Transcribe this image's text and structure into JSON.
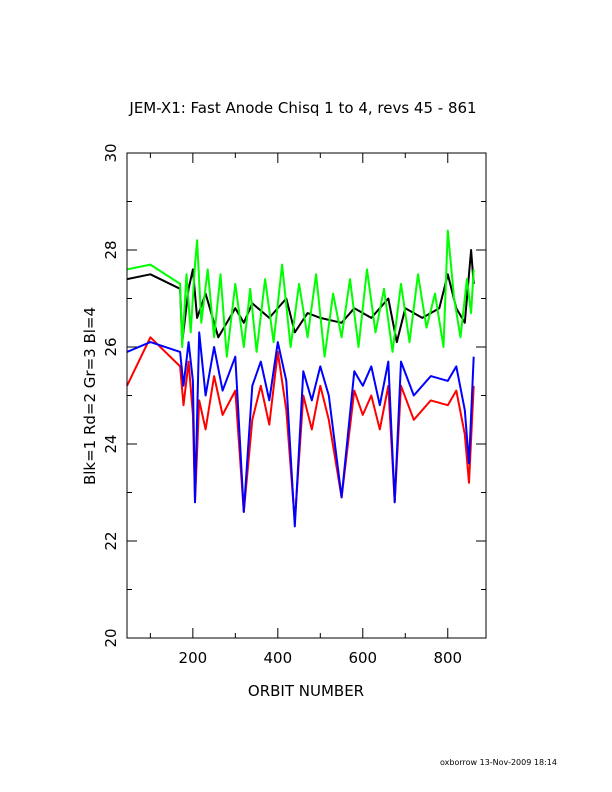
{
  "chart_data": {
    "type": "line",
    "title": "JEM-X1: Fast Anode Chisq 1 to 4, revs 45 - 861",
    "xlabel": "ORBIT NUMBER",
    "ylabel": "Blk=1 Rd=2 Gr=3 Bl=4",
    "xlim": [
      45,
      890
    ],
    "ylim": [
      20,
      30
    ],
    "x_ticks": [
      200,
      400,
      600,
      800
    ],
    "y_ticks": [
      20,
      22,
      24,
      26,
      28,
      30
    ],
    "grid": false,
    "legend": "none",
    "series": [
      {
        "color": "#000000",
        "x": [
          45,
          100,
          170,
          175,
          190,
          200,
          210,
          230,
          260,
          300,
          320,
          340,
          380,
          420,
          440,
          470,
          500,
          550,
          580,
          620,
          660,
          680,
          700,
          740,
          780,
          800,
          820,
          840,
          855,
          861
        ],
        "y": [
          27.4,
          27.5,
          27.2,
          26.1,
          27.2,
          27.6,
          26.6,
          27.1,
          26.2,
          26.8,
          26.5,
          26.9,
          26.6,
          27.0,
          26.3,
          26.7,
          26.6,
          26.5,
          26.8,
          26.6,
          27.0,
          26.1,
          26.8,
          26.6,
          26.8,
          27.5,
          26.8,
          26.5,
          28.0,
          27.3
        ]
      },
      {
        "color": "#ff0000",
        "x": [
          45,
          100,
          170,
          178,
          190,
          200,
          205,
          215,
          230,
          250,
          270,
          300,
          320,
          340,
          360,
          380,
          400,
          420,
          440,
          460,
          480,
          500,
          520,
          550,
          580,
          600,
          620,
          640,
          660,
          675,
          690,
          720,
          760,
          800,
          820,
          840,
          850,
          861
        ],
        "y": [
          25.2,
          26.2,
          25.6,
          24.8,
          25.7,
          24.6,
          22.8,
          24.9,
          24.3,
          25.4,
          24.6,
          25.1,
          22.6,
          24.5,
          25.2,
          24.4,
          25.9,
          24.7,
          22.4,
          25.0,
          24.3,
          25.2,
          24.5,
          22.9,
          25.1,
          24.6,
          25.0,
          24.3,
          25.2,
          22.8,
          25.2,
          24.5,
          24.9,
          24.8,
          25.1,
          24.2,
          23.2,
          25.2
        ]
      },
      {
        "color": "#00ff00",
        "x": [
          45,
          100,
          170,
          175,
          185,
          195,
          205,
          210,
          220,
          235,
          250,
          265,
          280,
          300,
          320,
          335,
          350,
          370,
          390,
          410,
          430,
          450,
          470,
          490,
          510,
          530,
          550,
          570,
          590,
          610,
          630,
          650,
          670,
          690,
          710,
          730,
          750,
          770,
          790,
          800,
          815,
          830,
          845,
          855,
          861
        ],
        "y": [
          27.6,
          27.7,
          27.3,
          26.0,
          27.5,
          26.3,
          27.7,
          28.2,
          26.5,
          27.6,
          26.2,
          27.5,
          25.8,
          27.3,
          26.0,
          27.2,
          25.9,
          27.4,
          26.1,
          27.7,
          26.0,
          27.3,
          26.2,
          27.5,
          25.8,
          27.1,
          26.2,
          27.4,
          26.0,
          27.6,
          26.3,
          27.2,
          25.9,
          27.3,
          26.1,
          27.5,
          26.4,
          27.1,
          26.0,
          28.4,
          27.0,
          26.2,
          27.4,
          26.7,
          27.6
        ]
      },
      {
        "color": "#0000ff",
        "x": [
          45,
          100,
          170,
          178,
          190,
          200,
          205,
          215,
          230,
          250,
          270,
          300,
          320,
          340,
          360,
          380,
          400,
          420,
          440,
          460,
          480,
          500,
          520,
          550,
          580,
          600,
          620,
          640,
          660,
          675,
          690,
          720,
          760,
          800,
          820,
          840,
          850,
          861
        ],
        "y": [
          25.9,
          26.1,
          25.9,
          25.2,
          26.1,
          25.3,
          22.8,
          26.3,
          25.0,
          26.0,
          25.1,
          25.8,
          22.6,
          25.2,
          25.7,
          24.9,
          26.1,
          25.3,
          22.3,
          25.5,
          24.9,
          25.6,
          25.0,
          22.9,
          25.5,
          25.2,
          25.6,
          24.8,
          25.7,
          22.8,
          25.7,
          25.0,
          25.4,
          25.3,
          25.6,
          24.7,
          23.6,
          25.8
        ]
      }
    ]
  },
  "footer": {
    "stamp": "oxborrow 13-Nov-2009 18:14"
  }
}
